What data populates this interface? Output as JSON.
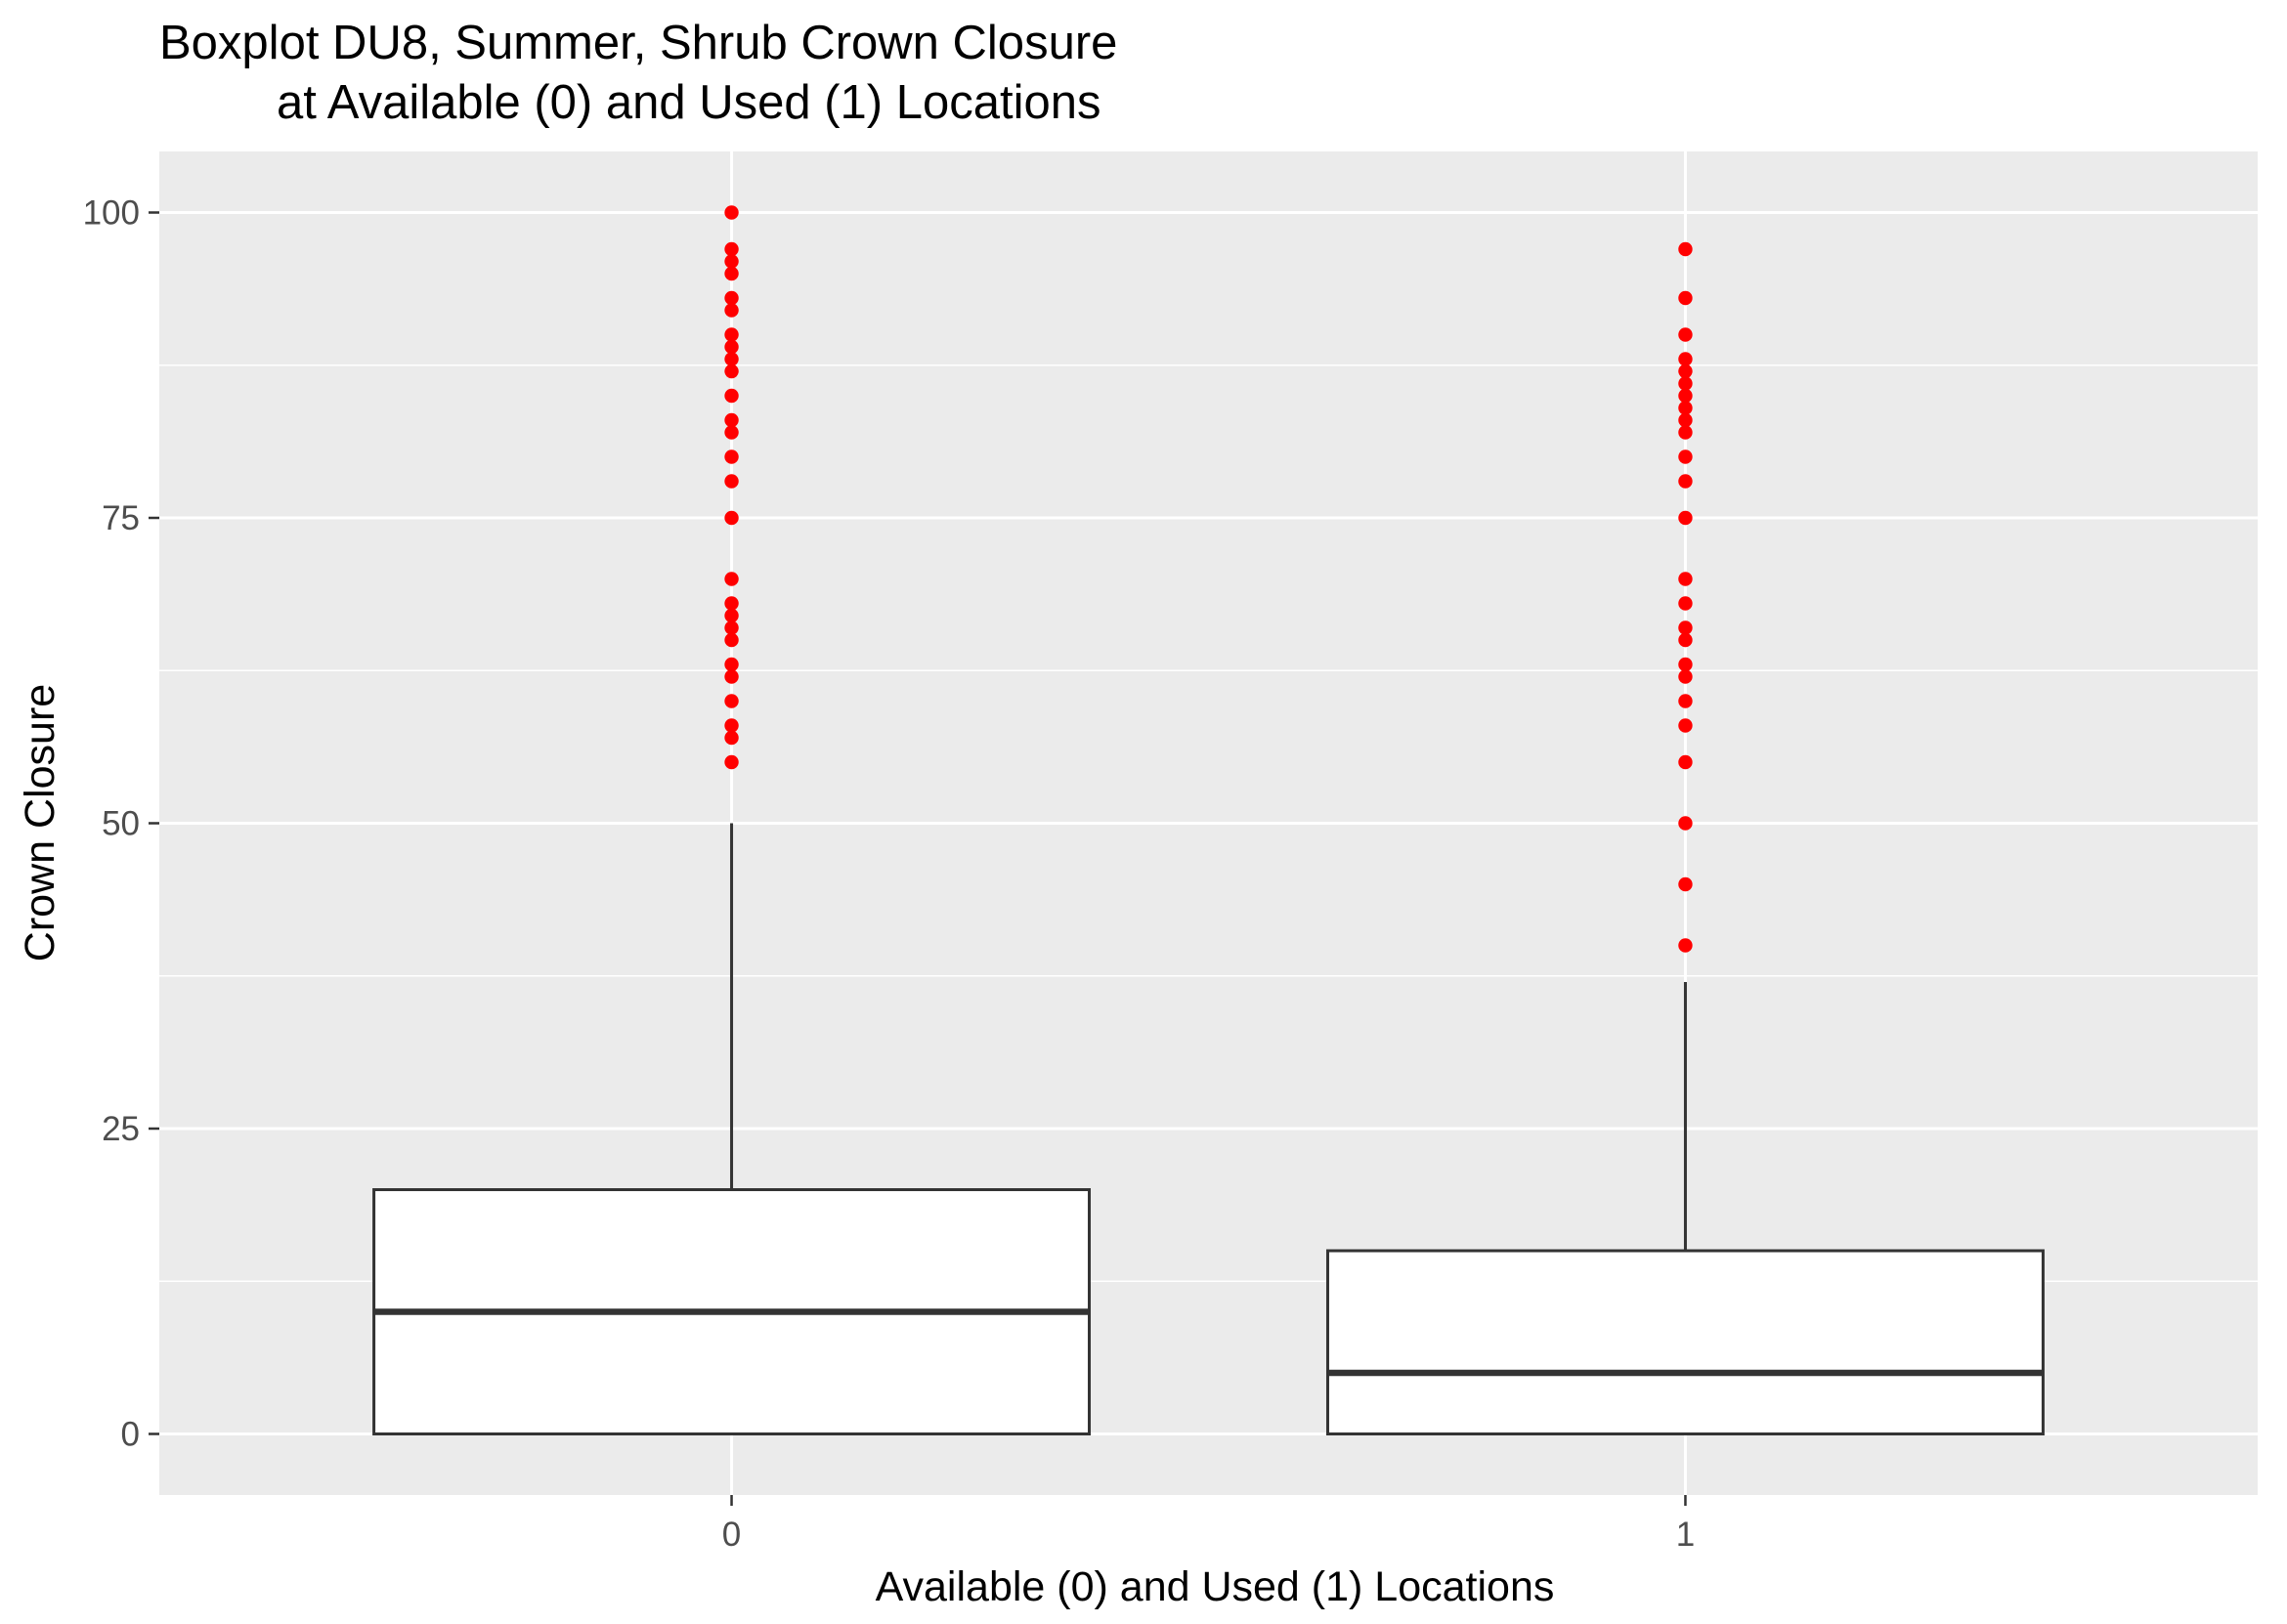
{
  "chart_data": {
    "type": "boxplot",
    "title_lines": [
      "Boxplot DU8, Summer, Shrub Crown Closure",
      "at Available (0) and Used (1) Locations"
    ],
    "xlabel": "Available (0) and Used (1) Locations",
    "ylabel": "Crown Closure",
    "categories": [
      "0",
      "1"
    ],
    "y_ticks": [
      0,
      25,
      50,
      75,
      100
    ],
    "y_tick_labels": [
      "0",
      "25",
      "50",
      "75",
      "100"
    ],
    "ylim": [
      -5,
      105
    ],
    "grid": true,
    "boxes": [
      {
        "category": "0",
        "q1": 0,
        "median": 10,
        "q3": 20,
        "whisker_low": 0,
        "whisker_high": 50,
        "outliers": [
          55,
          57,
          58,
          60,
          62,
          63,
          65,
          66,
          67,
          68,
          70,
          75,
          78,
          80,
          82,
          83,
          85,
          87,
          88,
          89,
          90,
          92,
          93,
          95,
          96,
          97,
          100
        ]
      },
      {
        "category": "1",
        "q1": 0,
        "median": 5,
        "q3": 15,
        "whisker_low": 0,
        "whisker_high": 37,
        "outliers": [
          40,
          45,
          50,
          55,
          58,
          60,
          62,
          63,
          65,
          66,
          68,
          70,
          75,
          78,
          80,
          82,
          83,
          84,
          85,
          86,
          87,
          88,
          90,
          93,
          97
        ]
      }
    ],
    "colors": {
      "panel_background": "#ebebeb",
      "grid_major": "#ffffff",
      "box_fill": "#ffffff",
      "box_stroke": "#333333",
      "outlier": "#ff0000",
      "tick_label": "#4d4d4d"
    }
  }
}
